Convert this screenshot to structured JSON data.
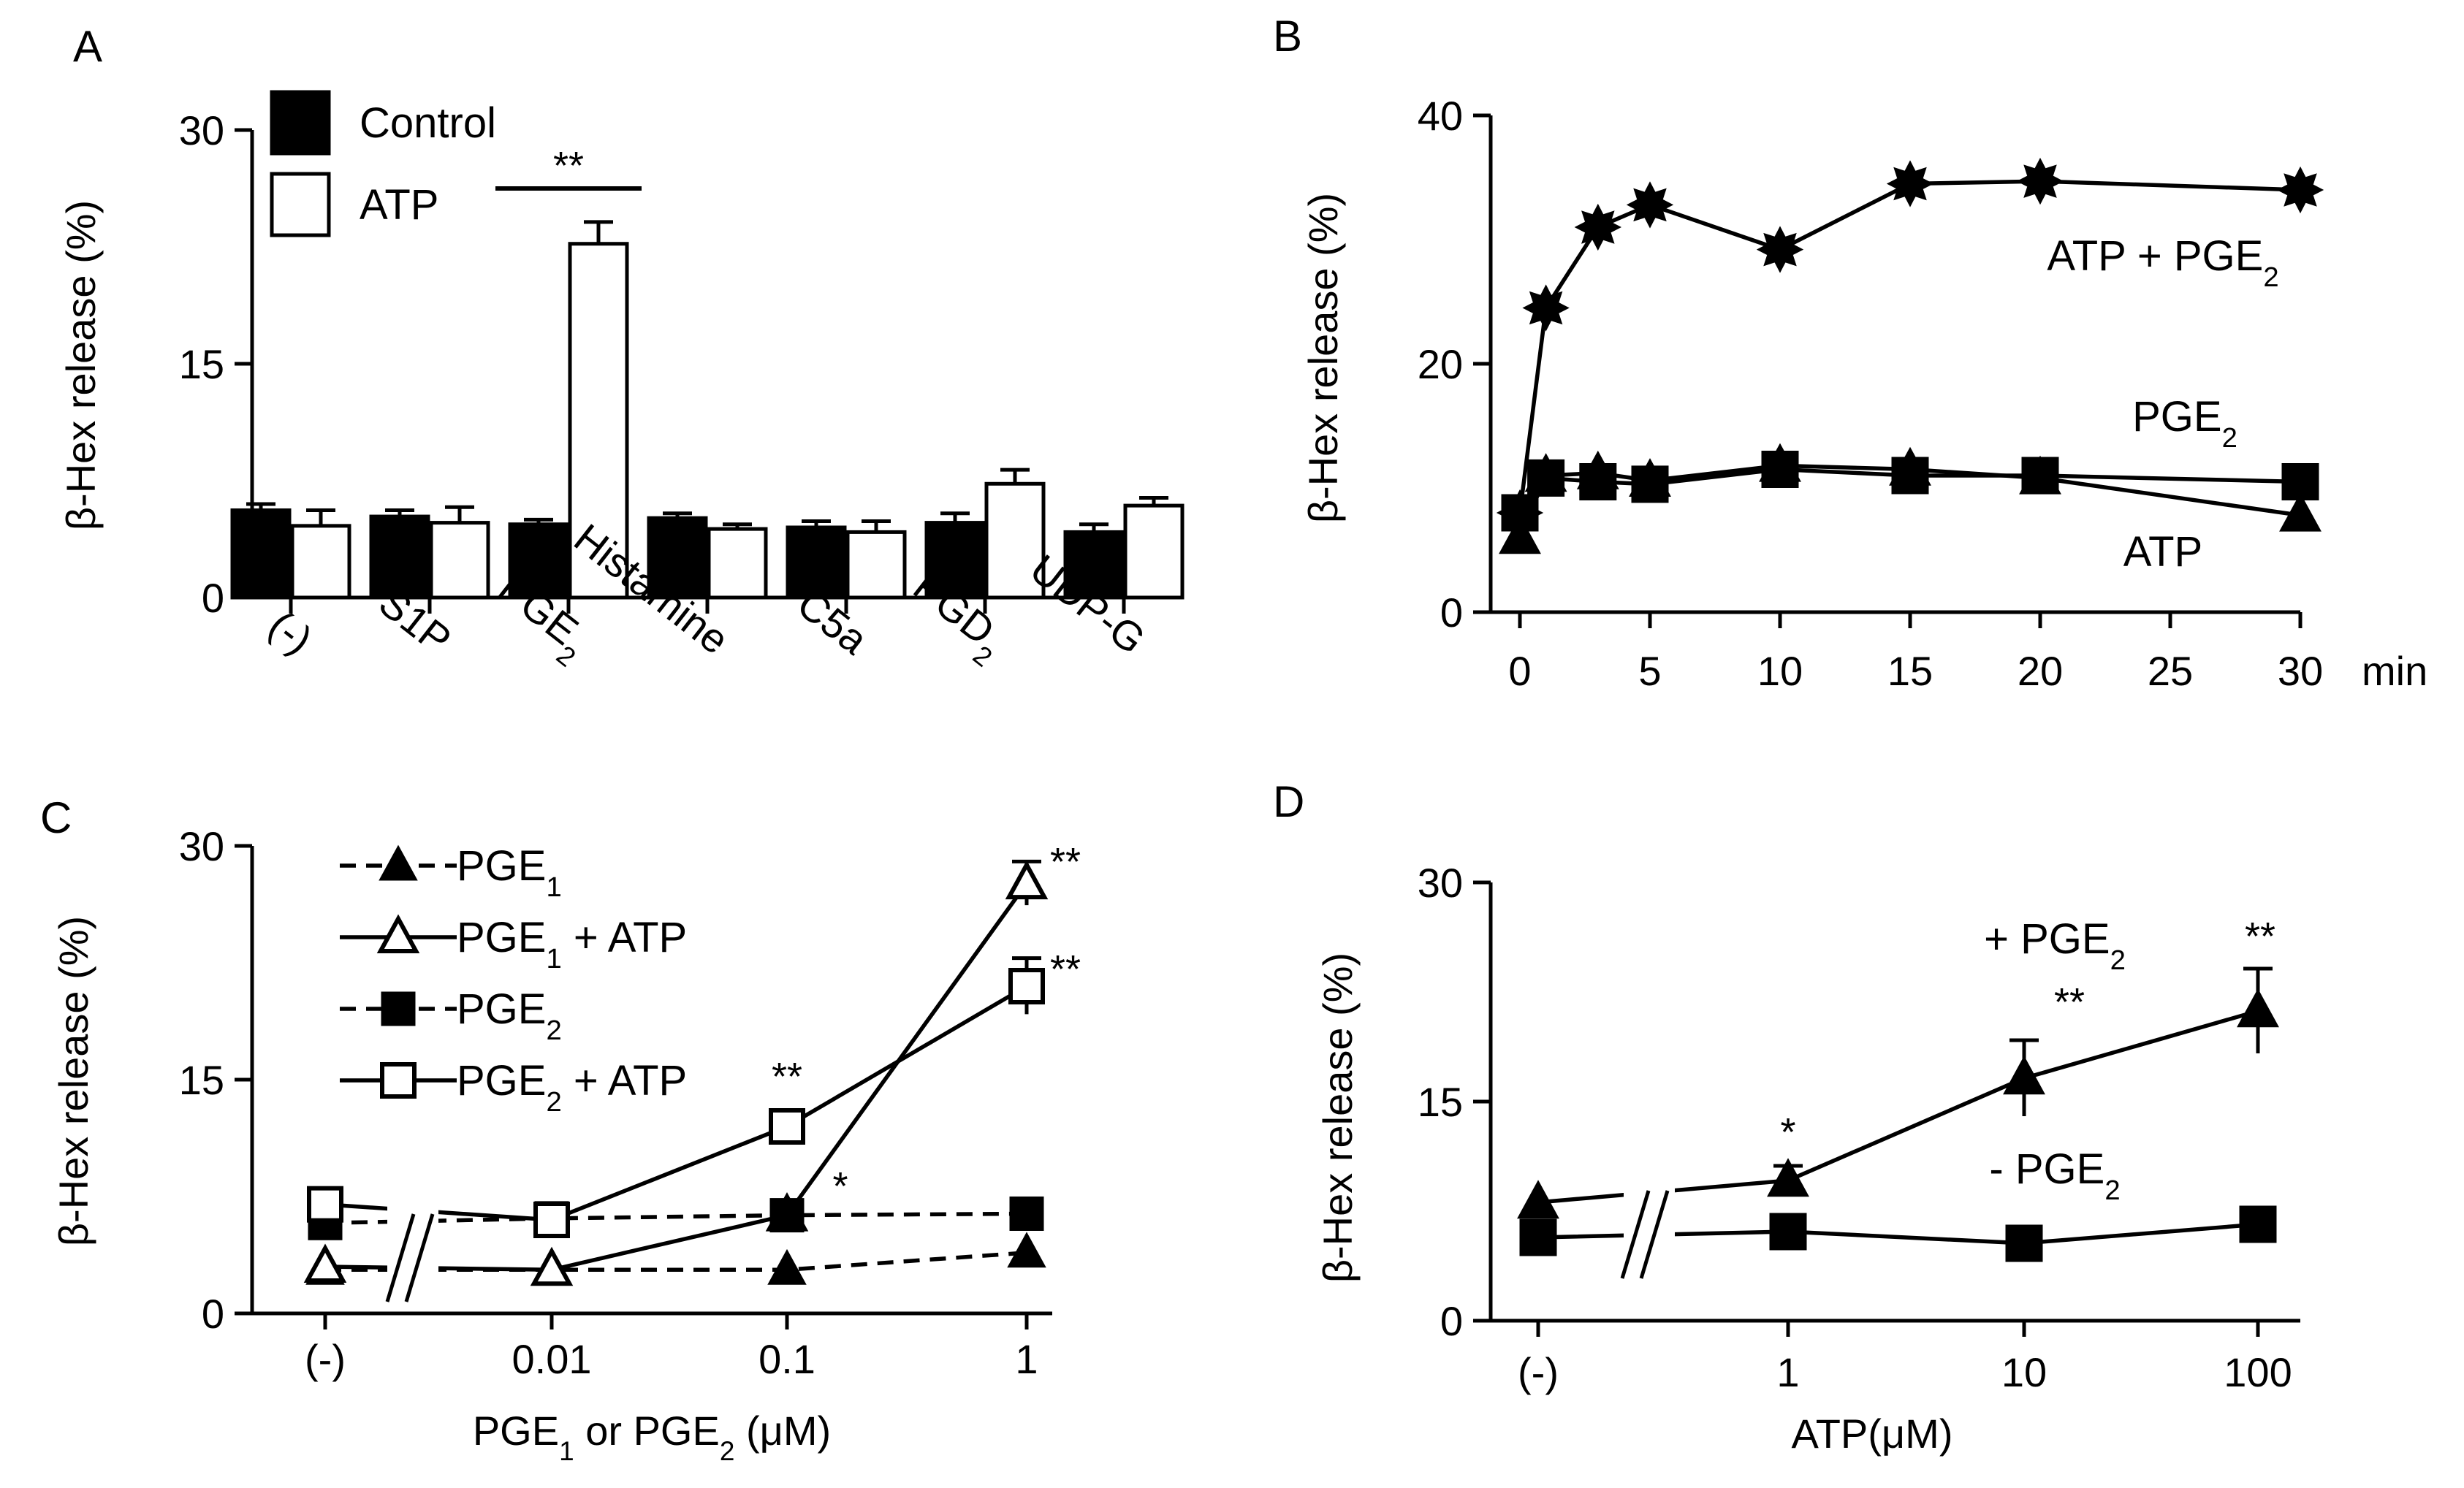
{
  "chart_data": [
    {
      "panel": "A",
      "type": "bar",
      "ylabel": "β-Hex release (%)",
      "ylim": [
        0,
        30
      ],
      "yticks": [
        0,
        15,
        30
      ],
      "categories": [
        "(-)",
        "S1P",
        "PGE2",
        "Histamine",
        "C5a",
        "PGD2",
        "UDP-G"
      ],
      "series": [
        {
          "name": "Control",
          "fill": "#000000",
          "values": [
            5.6,
            5.2,
            4.7,
            5.1,
            4.5,
            4.8,
            4.2
          ],
          "errors": [
            0.4,
            0.4,
            0.3,
            0.3,
            0.4,
            0.6,
            0.5
          ]
        },
        {
          "name": "ATP",
          "fill": "#ffffff",
          "values": [
            4.6,
            4.8,
            22.7,
            4.4,
            4.2,
            7.3,
            5.9
          ],
          "errors": [
            1.0,
            1.0,
            1.4,
            0.3,
            0.7,
            0.9,
            0.5
          ]
        }
      ],
      "annotations": [
        {
          "text": "**",
          "category": "PGE2"
        }
      ]
    },
    {
      "panel": "B",
      "type": "line",
      "ylabel": "β-Hex release (%)",
      "xlabel": "min",
      "xlim": [
        0,
        30
      ],
      "ylim": [
        0,
        40
      ],
      "xticks": [
        0,
        5,
        10,
        15,
        20,
        25,
        30
      ],
      "yticks": [
        0,
        20,
        40
      ],
      "series": [
        {
          "name": "ATP + PGE2",
          "marker": "star",
          "x": [
            0,
            1,
            3,
            5,
            10,
            15,
            20,
            30
          ],
          "y": [
            8,
            24.5,
            31,
            32.8,
            29.2,
            34.5,
            34.7,
            34
          ]
        },
        {
          "name": "PGE2",
          "marker": "square",
          "x": [
            0,
            1,
            3,
            5,
            10,
            15,
            20,
            30
          ],
          "y": [
            8,
            10.8,
            10.5,
            10.3,
            11.5,
            11,
            11,
            10.5
          ]
        },
        {
          "name": "ATP",
          "marker": "triangle",
          "x": [
            0,
            1,
            3,
            5,
            10,
            15,
            20,
            30
          ],
          "y": [
            6,
            11,
            11.2,
            10.6,
            11.8,
            11.5,
            10.8,
            7.8
          ]
        }
      ]
    },
    {
      "panel": "C",
      "type": "line",
      "ylabel": "β-Hex release (%)",
      "xlabel": "PGE1 or PGE2 (μM)",
      "ylim": [
        0,
        30
      ],
      "yticks": [
        0,
        15,
        30
      ],
      "categories": [
        "(-)",
        "0.01",
        "0.1",
        "1"
      ],
      "series": [
        {
          "name": "PGE1",
          "marker": "triangle-filled",
          "line": "dashed",
          "values": [
            2.8,
            2.8,
            2.8,
            3.9
          ]
        },
        {
          "name": "PGE1 + ATP",
          "marker": "triangle-open",
          "line": "solid",
          "values": [
            3.0,
            2.8,
            6.3,
            27.6
          ],
          "errors": [
            0,
            0,
            0,
            1.4
          ]
        },
        {
          "name": "PGE2",
          "marker": "square-filled",
          "line": "dashed",
          "values": [
            5.8,
            6.1,
            6.3,
            6.4
          ]
        },
        {
          "name": "PGE2 + ATP",
          "marker": "square-open",
          "line": "solid",
          "values": [
            7.0,
            6.0,
            12.0,
            21.0
          ],
          "errors": [
            0,
            0,
            0,
            1.8
          ]
        }
      ],
      "annotations": [
        {
          "text": "**",
          "category": "0.1"
        },
        {
          "text": "*",
          "category": "0.1"
        },
        {
          "text": "**",
          "category": "1"
        },
        {
          "text": "**",
          "category": "1"
        }
      ]
    },
    {
      "panel": "D",
      "type": "line",
      "ylabel": "β-Hex release (%)",
      "xlabel": "ATP(μM)",
      "ylim": [
        0,
        30
      ],
      "yticks": [
        0,
        15,
        30
      ],
      "categories": [
        "(-)",
        "1",
        "10",
        "100"
      ],
      "series": [
        {
          "name": "+ PGE2",
          "marker": "triangle-filled",
          "values": [
            8.1,
            9.6,
            16.6,
            21.2
          ],
          "errors": [
            0,
            1.0,
            2.6,
            2.9
          ]
        },
        {
          "name": "- PGE2",
          "marker": "square-filled",
          "values": [
            5.7,
            6.1,
            5.3,
            6.6
          ]
        }
      ],
      "annotations": [
        {
          "text": "*",
          "category": "1"
        },
        {
          "text": "**",
          "category": "10"
        },
        {
          "text": "**",
          "category": "100"
        }
      ]
    }
  ]
}
